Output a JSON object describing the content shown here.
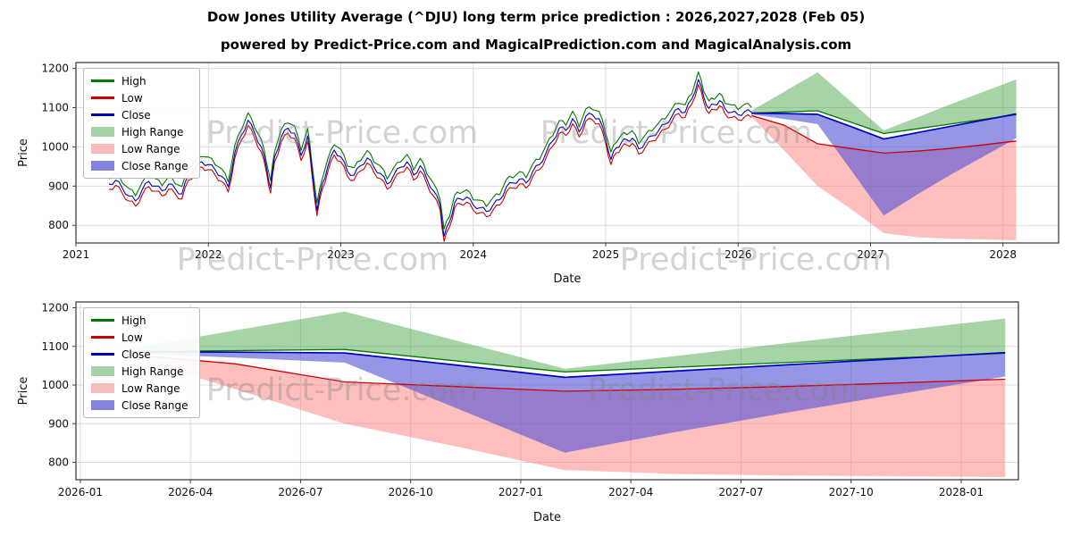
{
  "title": "Dow Jones Utility Average (^DJU) long term price prediction : 2026,2027,2028 (Feb 05)",
  "subtitle": "powered by Predict-Price.com and MagicalPrediction.com and MagicalAnalysis.com",
  "watermark": {
    "text": "Predict-Price.com"
  },
  "colors": {
    "high": "#007700",
    "low": "#cc0000",
    "close": "#0000bb",
    "high_range": "rgba(60,160,60,0.45)",
    "low_range": "rgba(250,110,110,0.45)",
    "close_range": "rgba(80,80,215,0.60)"
  },
  "legend": {
    "items": [
      {
        "label": "High",
        "swatch": "line",
        "color": "#007700"
      },
      {
        "label": "Low",
        "swatch": "line",
        "color": "#cc0000"
      },
      {
        "label": "Close",
        "swatch": "line",
        "color": "#0000bb"
      },
      {
        "label": "High Range",
        "swatch": "patch",
        "color": "#a5d3a5"
      },
      {
        "label": "Low Range",
        "swatch": "patch",
        "color": "#f5bcbc"
      },
      {
        "label": "Close Range",
        "swatch": "patch",
        "color": "#8383de"
      }
    ]
  },
  "series": {
    "history": {
      "x": [
        2021.25,
        2021.3,
        2021.35,
        2021.4,
        2021.45,
        2021.5,
        2021.55,
        2021.6,
        2021.65,
        2021.7,
        2021.75,
        2021.8,
        2021.85,
        2021.9,
        2021.95,
        2022.0,
        2022.05,
        2022.1,
        2022.15,
        2022.2,
        2022.25,
        2022.3,
        2022.35,
        2022.4,
        2022.44,
        2022.47,
        2022.5,
        2022.55,
        2022.6,
        2022.65,
        2022.7,
        2022.75,
        2022.78,
        2022.82,
        2022.86,
        2022.9,
        2022.95,
        2023.0,
        2023.05,
        2023.1,
        2023.15,
        2023.2,
        2023.25,
        2023.3,
        2023.35,
        2023.4,
        2023.45,
        2023.5,
        2023.55,
        2023.6,
        2023.65,
        2023.7,
        2023.75,
        2023.78,
        2023.82,
        2023.86,
        2023.9,
        2023.95,
        2024.0,
        2024.05,
        2024.1,
        2024.15,
        2024.2,
        2024.25,
        2024.3,
        2024.35,
        2024.4,
        2024.45,
        2024.5,
        2024.55,
        2024.6,
        2024.65,
        2024.7,
        2024.75,
        2024.8,
        2024.85,
        2024.9,
        2024.95,
        2025.0,
        2025.04,
        2025.08,
        2025.12,
        2025.16,
        2025.2,
        2025.25,
        2025.3,
        2025.35,
        2025.4,
        2025.45,
        2025.5,
        2025.55,
        2025.6,
        2025.65,
        2025.7,
        2025.74,
        2025.78,
        2025.82,
        2025.86,
        2025.9,
        2025.95,
        2026.0,
        2026.05,
        2026.1
      ],
      "close": [
        905,
        915,
        895,
        875,
        862,
        890,
        912,
        900,
        888,
        905,
        893,
        880,
        928,
        945,
        962,
        955,
        942,
        925,
        898,
        985,
        1030,
        1068,
        1035,
        1000,
        945,
        895,
        975,
        1025,
        1048,
        1035,
        978,
        1028,
        950,
        838,
        905,
        948,
        992,
        975,
        938,
        928,
        952,
        972,
        948,
        932,
        905,
        928,
        948,
        962,
        928,
        952,
        918,
        888,
        852,
        772,
        808,
        858,
        868,
        872,
        852,
        845,
        835,
        852,
        865,
        898,
        908,
        918,
        908,
        938,
        955,
        985,
        1015,
        1048,
        1042,
        1072,
        1038,
        1078,
        1082,
        1072,
        1022,
        968,
        998,
        1012,
        1018,
        1022,
        995,
        1012,
        1028,
        1042,
        1058,
        1078,
        1098,
        1088,
        1122,
        1172,
        1128,
        1098,
        1108,
        1118,
        1098,
        1088,
        1082,
        1090,
        1088
      ],
      "spread": 13
    },
    "prediction": {
      "x": [
        2026.1,
        2026.35,
        2026.6,
        2026.85,
        2027.1,
        2027.35,
        2027.6,
        2027.85,
        2028.1
      ],
      "high_upper": [
        1092,
        1141,
        1190,
        1116,
        1042,
        1075,
        1108,
        1140,
        1172
      ],
      "high_lower": [
        1086,
        1089,
        1092,
        1063,
        1034,
        1046,
        1058,
        1070,
        1082
      ],
      "close": [
        1086,
        1085,
        1083,
        1052,
        1020,
        1036,
        1052,
        1068,
        1084
      ],
      "close_lower": [
        1083,
        1071,
        1058,
        942,
        825,
        878,
        928,
        975,
        1022
      ],
      "low_upper": [
        1080,
        1055,
        1008,
        996,
        984,
        989,
        996,
        1005,
        1015
      ],
      "low_lower": [
        1077,
        990,
        900,
        842,
        780,
        770,
        766,
        764,
        762
      ]
    }
  },
  "chart_data": [
    {
      "type": "line",
      "name": "long-term-price-chart",
      "xlabel": "Date",
      "ylabel": "Price",
      "xlim": [
        2021.0,
        2028.42
      ],
      "ylim": [
        755,
        1215
      ],
      "yticks": [
        800,
        900,
        1000,
        1100,
        1200
      ],
      "xticks": {
        "values": [
          2021,
          2022,
          2023,
          2024,
          2025,
          2026,
          2027,
          2028
        ],
        "labels": [
          "2021",
          "2022",
          "2023",
          "2024",
          "2025",
          "2026",
          "2027",
          "2028"
        ]
      },
      "show_history": true,
      "legend_position": "upper left",
      "grid": true
    },
    {
      "type": "line",
      "name": "prediction-zoom-chart",
      "xlabel": "Date",
      "ylabel": "Price",
      "xlim": [
        2025.99,
        2028.13
      ],
      "ylim": [
        755,
        1215
      ],
      "yticks": [
        800,
        900,
        1000,
        1100,
        1200
      ],
      "xticks": {
        "values": [
          2026.0,
          2026.25,
          2026.5,
          2026.75,
          2027.0,
          2027.25,
          2027.5,
          2027.75,
          2028.0
        ],
        "labels": [
          "2026-01",
          "2026-04",
          "2026-07",
          "2026-10",
          "2027-01",
          "2027-04",
          "2027-07",
          "2027-10",
          "2028-01"
        ]
      },
      "show_history": false,
      "legend_position": "upper left",
      "grid": true
    }
  ]
}
